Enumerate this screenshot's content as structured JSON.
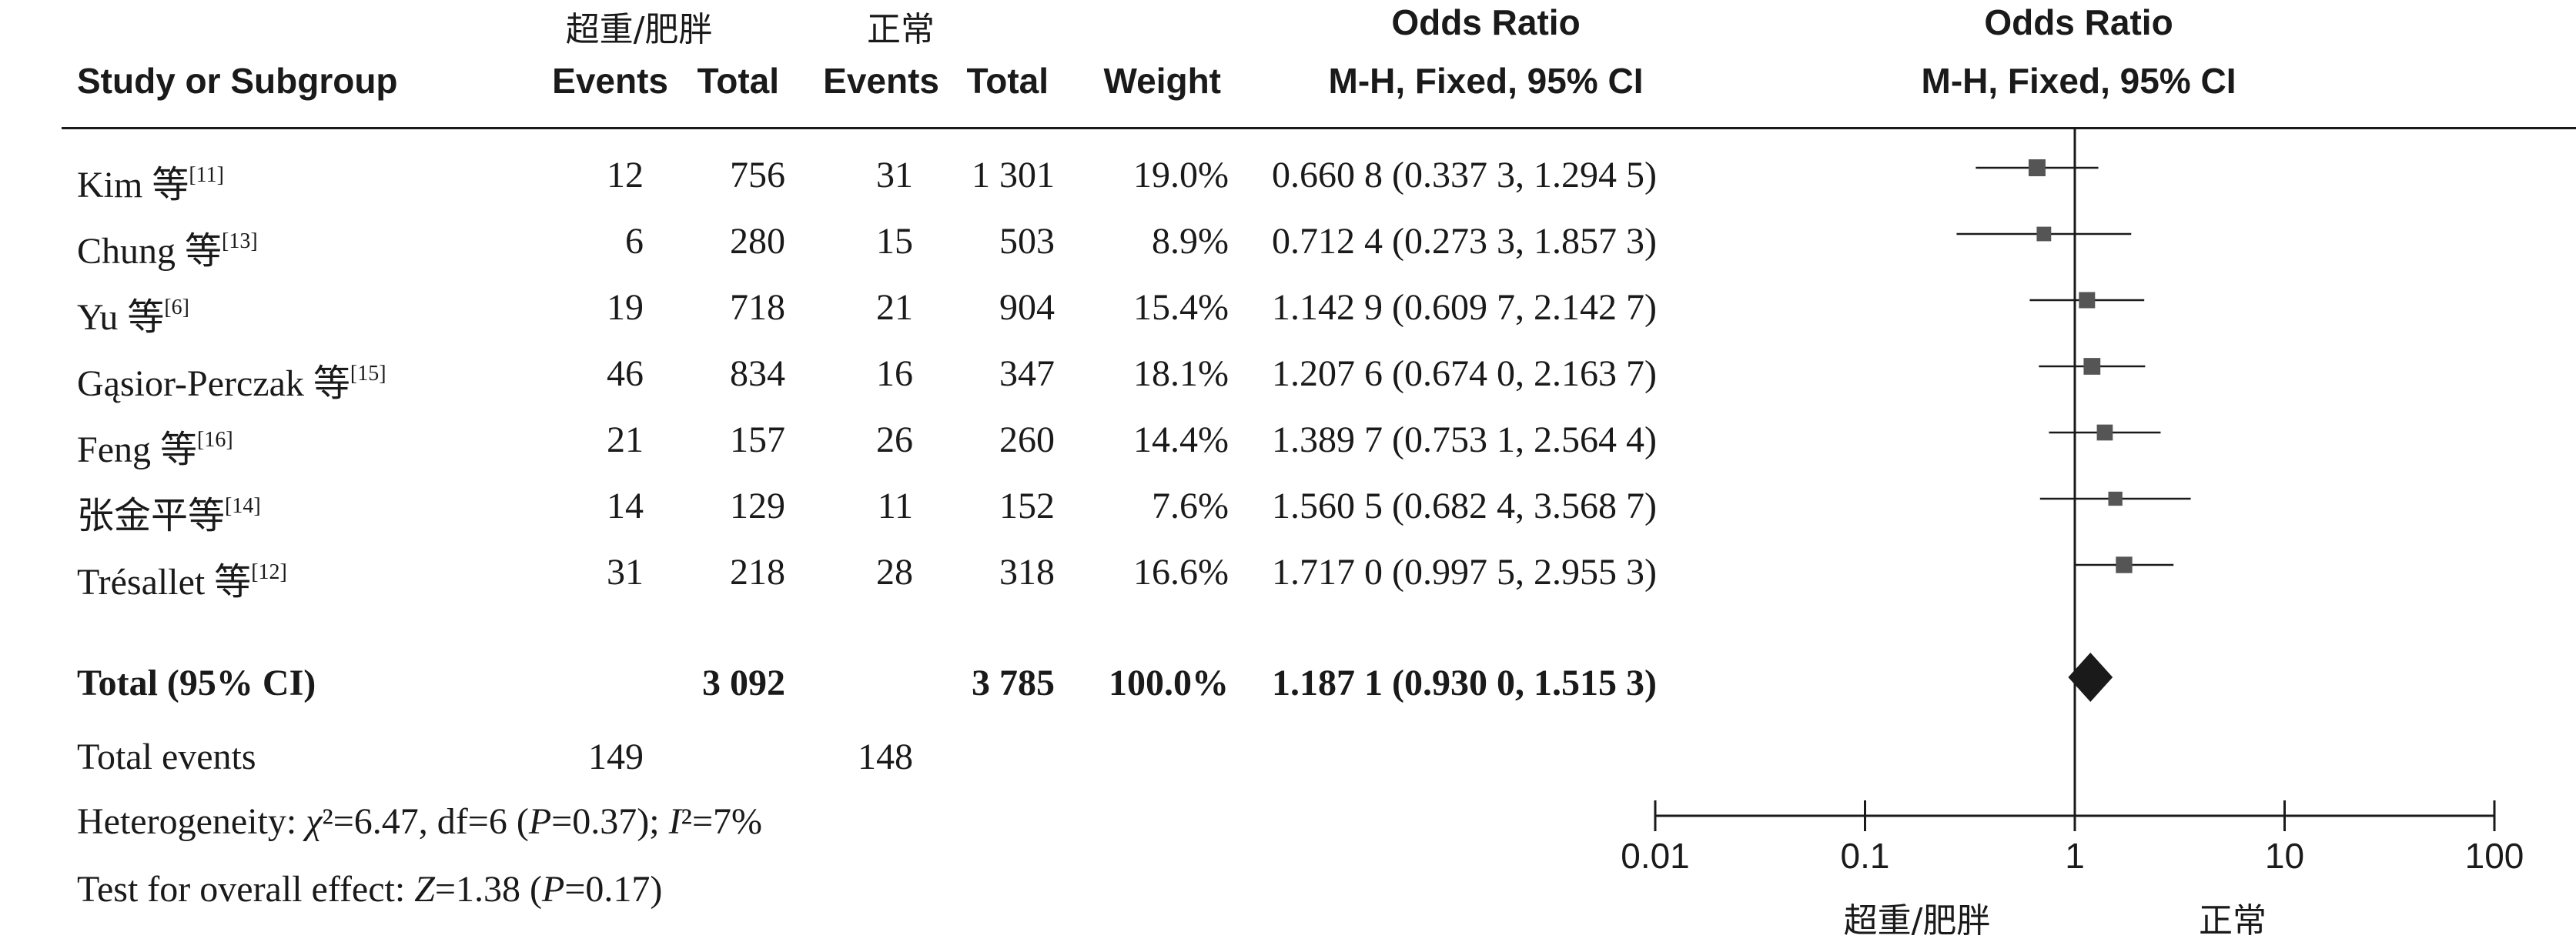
{
  "header": {
    "group1": "超重/肥胖",
    "group2": "正常",
    "study_col": "Study or Subgroup",
    "events": "Events",
    "total": "Total",
    "weight": "Weight",
    "or_title": "Odds Ratio",
    "or_method": "M-H, Fixed, 95% CI",
    "plot_title": "Odds Ratio",
    "plot_method": "M-H, Fixed, 95% CI"
  },
  "rows": [
    {
      "name": "Kim 等",
      "ref": "[11]",
      "e1": "12",
      "t1": "756",
      "e2": "31",
      "t2": "1 301",
      "weight": "19.0%",
      "ci": "0.660 8 (0.337 3, 1.294 5)"
    },
    {
      "name": "Chung 等",
      "ref": "[13]",
      "e1": "6",
      "t1": "280",
      "e2": "15",
      "t2": "503",
      "weight": "8.9%",
      "ci": "0.712 4 (0.273 3, 1.857 3)"
    },
    {
      "name": "Yu 等",
      "ref": "[6]",
      "e1": "19",
      "t1": "718",
      "e2": "21",
      "t2": "904",
      "weight": "15.4%",
      "ci": "1.142 9 (0.609 7, 2.142 7)"
    },
    {
      "name": "Gąsior-Perczak 等",
      "ref": "[15]",
      "e1": "46",
      "t1": "834",
      "e2": "16",
      "t2": "347",
      "weight": "18.1%",
      "ci": "1.207 6 (0.674 0, 2.163 7)"
    },
    {
      "name": "Feng 等",
      "ref": "[16]",
      "e1": "21",
      "t1": "157",
      "e2": "26",
      "t2": "260",
      "weight": "14.4%",
      "ci": "1.389 7 (0.753 1, 2.564 4)"
    },
    {
      "name": "张金平等",
      "ref": "[14]",
      "e1": "14",
      "t1": "129",
      "e2": "11",
      "t2": "152",
      "weight": "7.6%",
      "ci": "1.560 5 (0.682 4, 3.568 7)"
    },
    {
      "name": "Trésallet 等",
      "ref": "[12]",
      "e1": "31",
      "t1": "218",
      "e2": "28",
      "t2": "318",
      "weight": "16.6%",
      "ci": "1.717 0 (0.997 5, 2.955 3)"
    }
  ],
  "total_row": {
    "label": "Total (95% CI)",
    "t1": "3 092",
    "t2": "3 785",
    "weight": "100.0%",
    "ci": "1.187 1 (0.930 0, 1.515 3)"
  },
  "total_events": {
    "label": "Total events",
    "e1": "149",
    "e2": "148"
  },
  "heterogeneity": {
    "prefix": "Heterogeneity: ",
    "chi": "χ",
    "chi_val": "²=6.47, df=6 (",
    "p": "P",
    "p_val": "=0.37); ",
    "i": "I",
    "i_val": "²=7%"
  },
  "overall": {
    "prefix": "Test for overall effect: ",
    "z": "Z",
    "z_val": "=1.38 (",
    "p": "P",
    "p_val": "=0.17)"
  },
  "axis_labels": {
    "left": "超重/肥胖",
    "right": "正常"
  },
  "colors": {
    "marker": "#555555",
    "line": "#1a1a1a"
  },
  "chart_data": {
    "type": "forest",
    "title": "Odds Ratio",
    "subtitle": "M-H, Fixed, 95% CI",
    "xscale": "log",
    "xlim": [
      0.01,
      100
    ],
    "ticks": [
      0.01,
      0.1,
      1,
      10,
      100
    ],
    "tick_labels": [
      "0.01",
      "0.1",
      "1",
      "10",
      "100"
    ],
    "reference_line": 1,
    "studies": [
      {
        "or": 0.6608,
        "lo": 0.3373,
        "hi": 1.2945,
        "weight": 19.0
      },
      {
        "or": 0.7124,
        "lo": 0.2733,
        "hi": 1.8573,
        "weight": 8.9
      },
      {
        "or": 1.1429,
        "lo": 0.6097,
        "hi": 2.1427,
        "weight": 15.4
      },
      {
        "or": 1.2076,
        "lo": 0.674,
        "hi": 2.1637,
        "weight": 18.1
      },
      {
        "or": 1.3897,
        "lo": 0.7531,
        "hi": 2.5644,
        "weight": 14.4
      },
      {
        "or": 1.5605,
        "lo": 0.6824,
        "hi": 3.5687,
        "weight": 7.6
      },
      {
        "or": 1.717,
        "lo": 0.9975,
        "hi": 2.9553,
        "weight": 16.6
      }
    ],
    "pooled": {
      "or": 1.1871,
      "lo": 0.93,
      "hi": 1.5153
    }
  }
}
